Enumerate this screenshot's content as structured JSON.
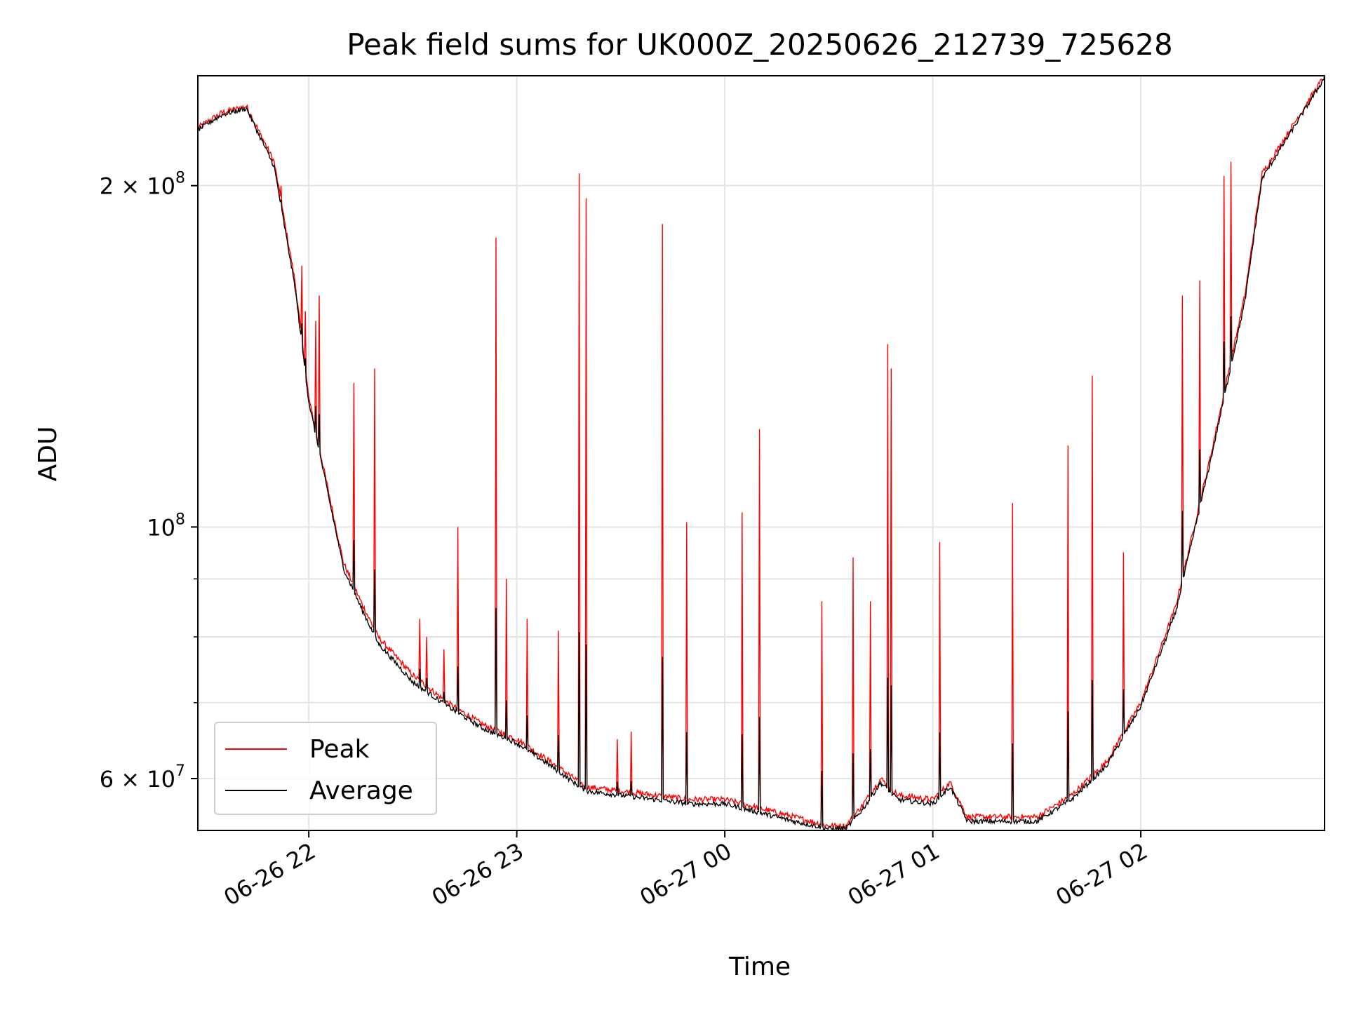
{
  "chart_data": {
    "type": "line",
    "title": "Peak field sums for UK000Z_20250626_212739_725628",
    "xlabel": "Time",
    "ylabel": "ADU",
    "yscale": "log",
    "ylim": [
      54000000,
      250000000
    ],
    "xlim": [
      "06-26 21:28",
      "06-27 02:53"
    ],
    "x_ticks": [
      "06-26 22",
      "06-26 23",
      "06-27 00",
      "06-27 01",
      "06-27 02"
    ],
    "y_ticks": [
      {
        "label_base": "2",
        "label_exp": "8",
        "value": 200000000,
        "times": true
      },
      {
        "label_base": "10",
        "label_exp": "8",
        "value": 100000000,
        "times": false
      },
      {
        "label_base": "6",
        "label_exp": "7",
        "value": 60000000,
        "times": true
      }
    ],
    "y_minor": [
      70000000,
      80000000,
      90000000
    ],
    "grid": true,
    "legend_position": "lower-left",
    "series": [
      {
        "name": "Peak",
        "color": "#ff0000",
        "x": [
          "06-26 21:28",
          "06-26 21:35",
          "06-26 21:42",
          "06-26 21:50",
          "06-26 21:56",
          "06-26 22:00",
          "06-26 22:05",
          "06-26 22:10",
          "06-26 22:15",
          "06-26 22:20",
          "06-26 22:30",
          "06-26 22:40",
          "06-26 22:50",
          "06-26 23:00",
          "06-26 23:10",
          "06-26 23:20",
          "06-26 23:30",
          "06-26 23:40",
          "06-26 23:50",
          "06-27 00:00",
          "06-27 00:10",
          "06-27 00:20",
          "06-27 00:30",
          "06-27 00:35",
          "06-27 00:40",
          "06-27 00:45",
          "06-27 00:50",
          "06-27 01:00",
          "06-27 01:05",
          "06-27 01:10",
          "06-27 01:20",
          "06-27 01:30",
          "06-27 01:40",
          "06-27 01:50",
          "06-27 02:00",
          "06-27 02:10",
          "06-27 02:20",
          "06-27 02:30",
          "06-27 02:35",
          "06-27 02:53"
        ],
        "y": [
          225000000,
          232000000,
          235000000,
          210000000,
          165000000,
          130000000,
          110000000,
          93000000,
          86000000,
          80000000,
          74000000,
          70000000,
          67000000,
          65000000,
          62000000,
          59000000,
          58500000,
          58000000,
          57500000,
          57500000,
          56500000,
          55500000,
          54500000,
          54500000,
          57000000,
          60000000,
          58000000,
          57500000,
          59500000,
          55500000,
          55500000,
          55500000,
          58000000,
          62000000,
          70000000,
          85000000,
          115000000,
          160000000,
          205000000,
          250000000
        ]
      },
      {
        "name": "Average",
        "color": "#000000",
        "x": [
          "06-26 21:28",
          "06-26 21:35",
          "06-26 21:42",
          "06-26 21:50",
          "06-26 21:56",
          "06-26 22:00",
          "06-26 22:05",
          "06-26 22:10",
          "06-26 22:15",
          "06-26 22:20",
          "06-26 22:30",
          "06-26 22:40",
          "06-26 22:50",
          "06-26 23:00",
          "06-26 23:10",
          "06-26 23:20",
          "06-26 23:30",
          "06-26 23:40",
          "06-26 23:50",
          "06-27 00:00",
          "06-27 00:10",
          "06-27 00:20",
          "06-27 00:30",
          "06-27 00:35",
          "06-27 00:40",
          "06-27 00:45",
          "06-27 00:50",
          "06-27 01:00",
          "06-27 01:05",
          "06-27 01:10",
          "06-27 01:20",
          "06-27 01:30",
          "06-27 01:40",
          "06-27 01:50",
          "06-27 02:00",
          "06-27 02:10",
          "06-27 02:20",
          "06-27 02:30",
          "06-27 02:35",
          "06-27 02:53"
        ],
        "y": [
          224000000,
          231000000,
          234000000,
          208000000,
          163000000,
          129000000,
          109000000,
          92000000,
          85000000,
          79000000,
          73000000,
          69500000,
          66500000,
          64500000,
          61500000,
          58500000,
          58000000,
          57500000,
          57000000,
          57000000,
          56000000,
          55000000,
          54200000,
          54200000,
          56500000,
          59500000,
          57500000,
          57000000,
          59000000,
          55000000,
          55000000,
          55000000,
          57500000,
          61500000,
          69500000,
          84000000,
          114000000,
          158000000,
          203000000,
          249000000
        ]
      }
    ],
    "spikes": [
      {
        "x": "06-26 21:52",
        "y": 200000000
      },
      {
        "x": "06-26 21:58",
        "y": 170000000
      },
      {
        "x": "06-26 21:59",
        "y": 155000000
      },
      {
        "x": "06-26 22:02",
        "y": 152000000
      },
      {
        "x": "06-26 22:03",
        "y": 160000000
      },
      {
        "x": "06-26 22:13",
        "y": 134000000
      },
      {
        "x": "06-26 22:19",
        "y": 138000000
      },
      {
        "x": "06-26 22:32",
        "y": 83000000
      },
      {
        "x": "06-26 22:34",
        "y": 80000000
      },
      {
        "x": "06-26 22:39",
        "y": 78000000
      },
      {
        "x": "06-26 22:43",
        "y": 100000000
      },
      {
        "x": "06-26 22:54",
        "y": 180000000
      },
      {
        "x": "06-26 22:57",
        "y": 90000000
      },
      {
        "x": "06-26 23:03",
        "y": 83000000
      },
      {
        "x": "06-26 23:12",
        "y": 81000000
      },
      {
        "x": "06-26 23:18",
        "y": 205000000
      },
      {
        "x": "06-26 23:20",
        "y": 195000000
      },
      {
        "x": "06-26 23:29",
        "y": 65000000
      },
      {
        "x": "06-26 23:33",
        "y": 66000000
      },
      {
        "x": "06-26 23:42",
        "y": 185000000
      },
      {
        "x": "06-26 23:49",
        "y": 101000000
      },
      {
        "x": "06-27 00:05",
        "y": 103000000
      },
      {
        "x": "06-27 00:10",
        "y": 122000000
      },
      {
        "x": "06-27 00:28",
        "y": 86000000
      },
      {
        "x": "06-27 00:37",
        "y": 94000000
      },
      {
        "x": "06-27 00:42",
        "y": 86000000
      },
      {
        "x": "06-27 00:47",
        "y": 145000000
      },
      {
        "x": "06-27 00:48",
        "y": 138000000
      },
      {
        "x": "06-27 01:02",
        "y": 97000000
      },
      {
        "x": "06-27 01:23",
        "y": 105000000
      },
      {
        "x": "06-27 01:39",
        "y": 118000000
      },
      {
        "x": "06-27 01:46",
        "y": 136000000
      },
      {
        "x": "06-27 01:55",
        "y": 95000000
      },
      {
        "x": "06-27 02:12",
        "y": 160000000
      },
      {
        "x": "06-27 02:17",
        "y": 165000000
      },
      {
        "x": "06-27 02:24",
        "y": 204000000
      },
      {
        "x": "06-27 02:26",
        "y": 210000000
      }
    ]
  }
}
